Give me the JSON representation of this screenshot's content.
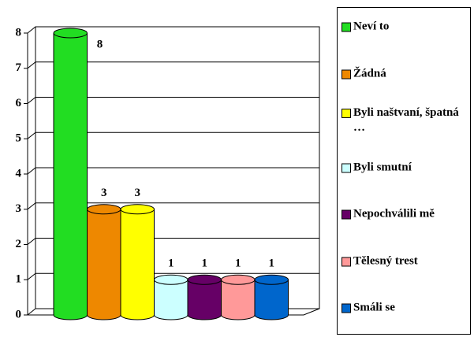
{
  "chart_data": {
    "type": "cylinder-bar",
    "series": [
      {
        "name": "Neví to",
        "color": "#22dd22",
        "values": [
          8
        ]
      },
      {
        "name": "Žádná",
        "color": "#ee8800",
        "values": [
          3
        ]
      },
      {
        "name": "Byli naštvaní, špatná …",
        "color": "#ffff00",
        "values": [
          3
        ]
      },
      {
        "name": "Byli smutní",
        "color": "#ccffff",
        "values": [
          1
        ]
      },
      {
        "name": "Nepochválili mě",
        "color": "#660066",
        "values": [
          1
        ]
      },
      {
        "name": "Tělesný trest",
        "color": "#ff9999",
        "values": [
          1
        ]
      },
      {
        "name": "Smáli se",
        "color": "#0066cc",
        "values": [
          1
        ]
      }
    ],
    "ylim": [
      0,
      8
    ],
    "yticks": [
      0,
      1,
      2,
      3,
      4,
      5,
      6,
      7,
      8
    ],
    "grid": true,
    "legend": "right"
  }
}
